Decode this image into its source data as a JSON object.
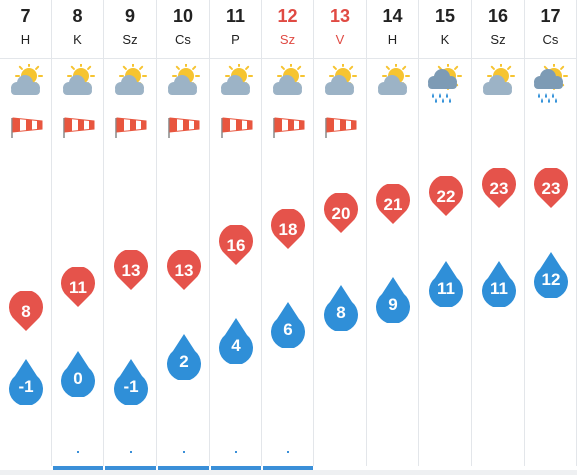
{
  "days": [
    {
      "day": "7",
      "abbr": "H",
      "weekend": false,
      "weather": "partly-cloudy-icon",
      "wind_warning": true,
      "max": "8",
      "min": "-1",
      "precip_dot": false,
      "rain_bar": false
    },
    {
      "day": "8",
      "abbr": "K",
      "weekend": false,
      "weather": "partly-cloudy-icon",
      "wind_warning": true,
      "max": "11",
      "min": "0",
      "precip_dot": true,
      "rain_bar": true
    },
    {
      "day": "9",
      "abbr": "Sz",
      "weekend": false,
      "weather": "partly-cloudy-icon",
      "wind_warning": true,
      "max": "13",
      "min": "-1",
      "precip_dot": true,
      "rain_bar": true
    },
    {
      "day": "10",
      "abbr": "Cs",
      "weekend": false,
      "weather": "partly-cloudy-icon",
      "wind_warning": true,
      "max": "13",
      "min": "2",
      "precip_dot": true,
      "rain_bar": true
    },
    {
      "day": "11",
      "abbr": "P",
      "weekend": false,
      "weather": "partly-cloudy-icon",
      "wind_warning": true,
      "max": "16",
      "min": "4",
      "precip_dot": true,
      "rain_bar": true
    },
    {
      "day": "12",
      "abbr": "Sz",
      "weekend": true,
      "weather": "partly-cloudy-icon",
      "wind_warning": true,
      "max": "18",
      "min": "6",
      "precip_dot": true,
      "rain_bar": true
    },
    {
      "day": "13",
      "abbr": "V",
      "weekend": true,
      "weather": "partly-cloudy-icon",
      "wind_warning": true,
      "max": "20",
      "min": "8",
      "precip_dot": false,
      "rain_bar": false
    },
    {
      "day": "14",
      "abbr": "H",
      "weekend": false,
      "weather": "partly-cloudy-icon",
      "wind_warning": false,
      "max": "21",
      "min": "9",
      "precip_dot": false,
      "rain_bar": false
    },
    {
      "day": "15",
      "abbr": "K",
      "weekend": false,
      "weather": "cloud-sun-rain-icon",
      "wind_warning": false,
      "max": "22",
      "min": "11",
      "precip_dot": false,
      "rain_bar": false
    },
    {
      "day": "16",
      "abbr": "Sz",
      "weekend": false,
      "weather": "partly-cloudy-icon",
      "wind_warning": false,
      "max": "23",
      "min": "11",
      "precip_dot": false,
      "rain_bar": false
    },
    {
      "day": "17",
      "abbr": "Cs",
      "weekend": false,
      "weather": "cloud-sun-rain-icon",
      "wind_warning": false,
      "max": "23",
      "min": "12",
      "precip_dot": false,
      "rain_bar": false
    }
  ],
  "colors": {
    "max_pin": "#e5534b",
    "min_drop": "#2f8fd8",
    "weekend_text": "#e04a43",
    "rain": "#3a8fd8",
    "wind_stripe": "#e8563f"
  }
}
